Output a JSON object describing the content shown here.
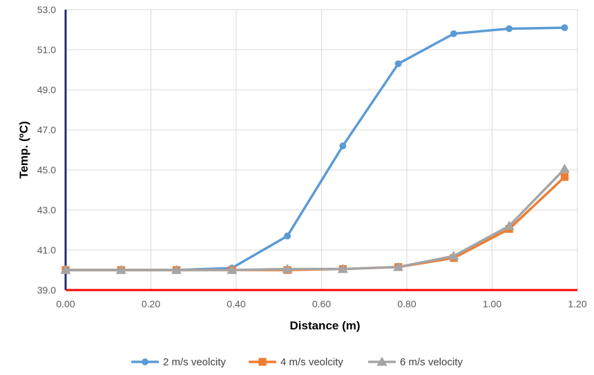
{
  "chart_data": {
    "type": "line",
    "xlabel": "Distance (m)",
    "ylabel": "Temp. (ºC)",
    "xlim": [
      0,
      1.2
    ],
    "ylim": [
      39.0,
      53.0
    ],
    "x_ticks": [
      "0.00",
      "0.20",
      "0.40",
      "0.60",
      "0.80",
      "1.00",
      "1.20"
    ],
    "y_ticks": [
      "39.0",
      "41.0",
      "43.0",
      "45.0",
      "47.0",
      "49.0",
      "51.0",
      "53.0"
    ],
    "grid": true,
    "legend_position": "bottom",
    "x": [
      0.0,
      0.13,
      0.26,
      0.39,
      0.52,
      0.65,
      0.78,
      0.91,
      1.04,
      1.17
    ],
    "series": [
      {
        "name": "2 m/s veolcity",
        "color": "#5b9bd5",
        "marker": "circle",
        "values": [
          40.0,
          40.0,
          40.0,
          40.1,
          41.7,
          46.2,
          50.3,
          51.8,
          52.05,
          52.1
        ]
      },
      {
        "name": "4 m/s veolcity",
        "color": "#ed7d31",
        "marker": "square",
        "values": [
          40.0,
          40.0,
          40.0,
          40.0,
          40.0,
          40.05,
          40.15,
          40.6,
          42.05,
          44.65
        ]
      },
      {
        "name": "6 m/s velocity",
        "color": "#a5a5a5",
        "marker": "triangle",
        "values": [
          40.0,
          40.0,
          40.0,
          40.0,
          40.05,
          40.05,
          40.15,
          40.7,
          42.2,
          45.05
        ]
      }
    ],
    "y_axis_color": "#1f2d6b",
    "x_axis_color": "#ff0000",
    "grid_color": "#d9d9d9"
  }
}
